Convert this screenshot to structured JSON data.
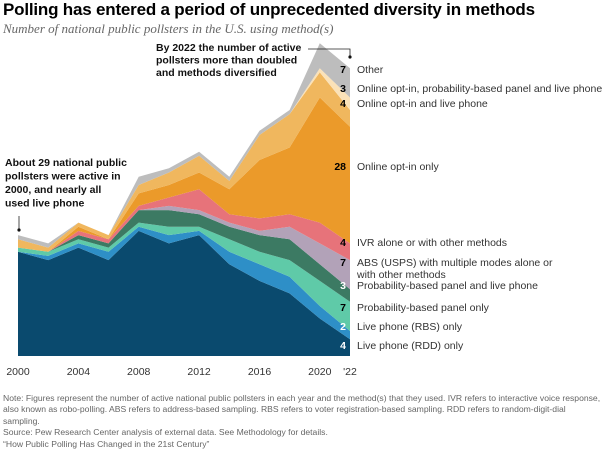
{
  "header": {
    "title": "Polling has entered a period of unprecedented diversity in methods",
    "subtitle": "Number of national public pollsters in the U.S. using method(s)"
  },
  "chart_data": {
    "type": "area",
    "stacked": true,
    "title": "Polling has entered a period of unprecedented diversity in methods",
    "subtitle": "Number of national public pollsters in the U.S. using method(s)",
    "xlabel": "",
    "ylabel": "Number of national public pollsters",
    "x": [
      2000,
      2002,
      2004,
      2006,
      2008,
      2010,
      2012,
      2014,
      2016,
      2018,
      2020,
      2022
    ],
    "x_tick_labels": [
      "2000",
      "2004",
      "2008",
      "2012",
      "2016",
      "2020",
      "'22"
    ],
    "x_tick_values": [
      2000,
      2004,
      2008,
      2012,
      2016,
      2020,
      2022
    ],
    "ylim": [
      0,
      76
    ],
    "grid": false,
    "legend_position": "right, inline at 2022 end",
    "series": [
      {
        "name": "Live phone (RDD) only",
        "color": "#0a4a6e",
        "label_2022": "4",
        "label_color": "#ffffff",
        "values": [
          25,
          23,
          26,
          23,
          30,
          27,
          29,
          22,
          18,
          15,
          9,
          4
        ]
      },
      {
        "name": "Live phone (RBS) only",
        "color": "#2e8fc7",
        "label_2022": "2",
        "label_color": "#ffffff",
        "values": [
          0,
          1,
          1,
          2,
          1,
          2,
          1,
          3,
          4,
          4,
          3,
          2
        ]
      },
      {
        "name": "Probability-based panel only",
        "color": "#5fcaa8",
        "label_2022": "7",
        "label_color": "#000000",
        "values": [
          1,
          1,
          1,
          1,
          1,
          2,
          1,
          3,
          3,
          4,
          6,
          7
        ]
      },
      {
        "name": "Probability-based panel and live phone",
        "color": "#3c7a63",
        "label_2022": "3",
        "label_color": "#ffffff",
        "values": [
          0,
          0,
          1,
          1,
          3,
          4,
          3,
          3,
          4,
          5,
          4,
          3
        ]
      },
      {
        "name": "ABS (USPS) with multiple modes alone or with other methods",
        "color": "#b2a2b8",
        "label_2022": "7",
        "label_color": "#000000",
        "values": [
          0,
          0,
          0,
          0,
          0,
          1,
          1,
          1,
          1,
          3,
          5,
          7
        ]
      },
      {
        "name": "IVR alone or with other methods",
        "color": "#e7737a",
        "label_2022": "4",
        "label_color": "#000000",
        "values": [
          0,
          0,
          1,
          1,
          1,
          2,
          5,
          2,
          3,
          3,
          5,
          4
        ]
      },
      {
        "name": "Online opt-in only",
        "color": "#eb9a2a",
        "label_2022": "28",
        "label_color": "#000000",
        "values": [
          0,
          0,
          1,
          0,
          3,
          3,
          4,
          6,
          14,
          16,
          30,
          28
        ]
      },
      {
        "name": "Online opt-in and live phone",
        "color": "#f0b75e",
        "label_2022": "4",
        "label_color": "#000000",
        "values": [
          2,
          1,
          1,
          1,
          2,
          3,
          4,
          2,
          6,
          8,
          6,
          4
        ]
      },
      {
        "name": "Online opt-in, probability-based panel and live phone",
        "color": "#fbe2b8",
        "label_2022": "3",
        "label_color": "#000000",
        "values": [
          0,
          0,
          0,
          0,
          0,
          0,
          0,
          0,
          0,
          0,
          1,
          3
        ]
      },
      {
        "name": "Other",
        "color": "#bdbdbd",
        "label_2022": "7",
        "label_color": "#000000",
        "values": [
          1,
          1,
          0,
          0,
          2,
          1,
          1,
          1,
          1,
          1,
          6,
          7
        ]
      }
    ],
    "annotations": [
      {
        "text_lines": [
          "About 29 national public",
          "pollsters were active in",
          "2000, and nearly all",
          "used live phone"
        ],
        "points_to_year": 2000
      },
      {
        "text_lines": [
          "By 2022 the number of active",
          "pollsters more than doubled",
          "and methods diversified"
        ],
        "points_to_year": 2022
      }
    ],
    "legend_labels": [
      {
        "num": "7",
        "lines": [
          "Other"
        ]
      },
      {
        "num": "3",
        "lines": [
          "Online opt-in, probability-based panel and live phone"
        ]
      },
      {
        "num": "4",
        "lines": [
          "Online opt-in and live phone"
        ]
      },
      {
        "num": "28",
        "lines": [
          "Online opt-in only"
        ]
      },
      {
        "num": "4",
        "lines": [
          "IVR alone or with other methods"
        ]
      },
      {
        "num": "7",
        "lines": [
          "ABS (USPS) with multiple modes alone or",
          "with other methods"
        ]
      },
      {
        "num": "3",
        "lines": [
          "Probability-based panel and live phone"
        ]
      },
      {
        "num": "7",
        "lines": [
          "Probability-based panel only"
        ]
      },
      {
        "num": "2",
        "lines": [
          "Live phone (RBS) only"
        ]
      },
      {
        "num": "4",
        "lines": [
          "Live phone (RDD) only"
        ]
      }
    ]
  },
  "notes": {
    "note": "Note: Figures represent the number of active national public pollsters in each year and the method(s) that they used. IVR refers to interactive voice response, also known as robo-polling. ABS refers to address-based sampling. RBS refers to voter registration-based sampling. RDD refers to random-digit-dial sampling.",
    "source": "Source: Pew Research Center analysis of external data. See Methodology for details.",
    "report": "“How Public Polling Has Changed in the 21st Century”"
  }
}
